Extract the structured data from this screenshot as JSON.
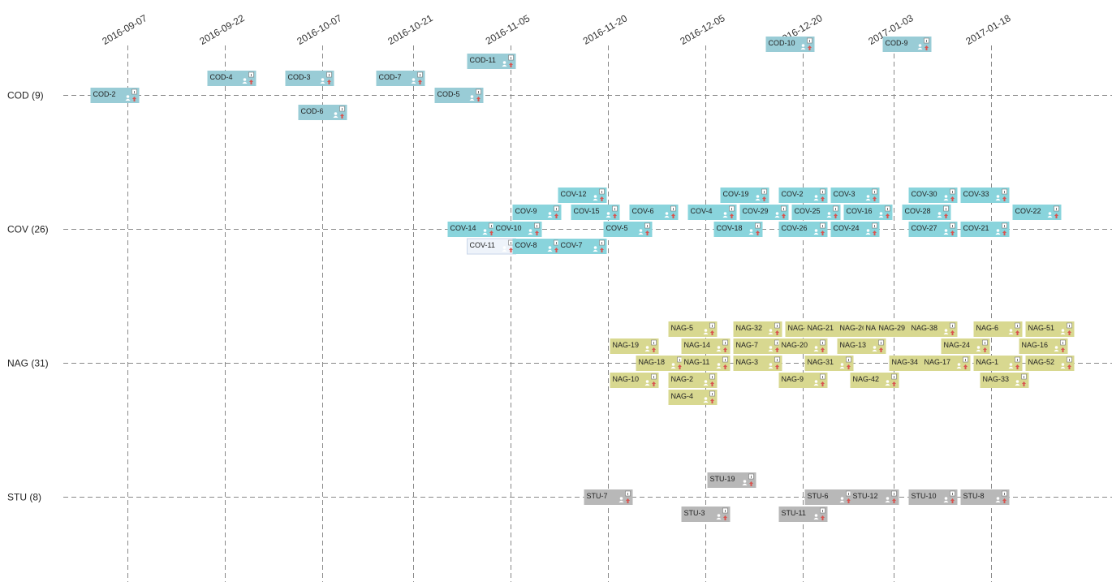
{
  "chart_data": {
    "type": "timeline",
    "dates": [
      "2016-09-07",
      "2016-09-22",
      "2016-10-07",
      "2016-10-21",
      "2016-11-05",
      "2016-11-20",
      "2016-12-05",
      "2016-12-20",
      "2017-01-03",
      "2017-01-18"
    ],
    "lanes": [
      {
        "key": "COD",
        "label": "COD (9)",
        "color": "#99ccd6"
      },
      {
        "key": "COV",
        "label": "COV (26)",
        "color": "#89d4dc"
      },
      {
        "key": "NAG",
        "label": "NAG (31)",
        "color": "#d8d890"
      },
      {
        "key": "STU",
        "label": "STU (8)",
        "color": "#b8b8b8"
      }
    ],
    "items": [
      {
        "lane": "COD",
        "label": "COD-2",
        "date": "2016-09-05",
        "offset": 0
      },
      {
        "lane": "COD",
        "label": "COD-4",
        "date": "2016-09-23",
        "offset": -1
      },
      {
        "lane": "COD",
        "label": "COD-3",
        "date": "2016-10-05",
        "offset": -1
      },
      {
        "lane": "COD",
        "label": "COD-6",
        "date": "2016-10-07",
        "offset": 1
      },
      {
        "lane": "COD",
        "label": "COD-7",
        "date": "2016-10-19",
        "offset": -1
      },
      {
        "lane": "COD",
        "label": "COD-5",
        "date": "2016-10-28",
        "offset": 0
      },
      {
        "lane": "COD",
        "label": "COD-11",
        "date": "2016-11-02",
        "offset": -2
      },
      {
        "lane": "COD",
        "label": "COD-10",
        "date": "2016-12-18",
        "offset": -3
      },
      {
        "lane": "COD",
        "label": "COD-9",
        "date": "2017-01-05",
        "offset": -3
      },
      {
        "lane": "COV",
        "label": "COV-14",
        "date": "2016-10-30",
        "offset": 0
      },
      {
        "lane": "COV",
        "label": "COV-11",
        "date": "2016-11-02",
        "offset": 1,
        "inactive": true
      },
      {
        "lane": "COV",
        "label": "COV-10",
        "date": "2016-11-06",
        "offset": 0
      },
      {
        "lane": "COV",
        "label": "COV-9",
        "date": "2016-11-09",
        "offset": -1
      },
      {
        "lane": "COV",
        "label": "COV-8",
        "date": "2016-11-09",
        "offset": 1
      },
      {
        "lane": "COV",
        "label": "COV-12",
        "date": "2016-11-16",
        "offset": -2
      },
      {
        "lane": "COV",
        "label": "COV-15",
        "date": "2016-11-18",
        "offset": -1
      },
      {
        "lane": "COV",
        "label": "COV-7",
        "date": "2016-11-16",
        "offset": 1
      },
      {
        "lane": "COV",
        "label": "COV-5",
        "date": "2016-11-23",
        "offset": 0
      },
      {
        "lane": "COV",
        "label": "COV-6",
        "date": "2016-11-27",
        "offset": -1
      },
      {
        "lane": "COV",
        "label": "COV-4",
        "date": "2016-12-06",
        "offset": -1
      },
      {
        "lane": "COV",
        "label": "COV-19",
        "date": "2016-12-11",
        "offset": -2
      },
      {
        "lane": "COV",
        "label": "COV-18",
        "date": "2016-12-10",
        "offset": 0
      },
      {
        "lane": "COV",
        "label": "COV-29",
        "date": "2016-12-14",
        "offset": -1
      },
      {
        "lane": "COV",
        "label": "COV-2",
        "date": "2016-12-20",
        "offset": -2
      },
      {
        "lane": "COV",
        "label": "COV-26",
        "date": "2016-12-20",
        "offset": 0
      },
      {
        "lane": "COV",
        "label": "COV-25",
        "date": "2016-12-22",
        "offset": -1
      },
      {
        "lane": "COV",
        "label": "COV-3",
        "date": "2016-12-28",
        "offset": -2
      },
      {
        "lane": "COV",
        "label": "COV-24",
        "date": "2016-12-28",
        "offset": 0
      },
      {
        "lane": "COV",
        "label": "COV-16",
        "date": "2016-12-30",
        "offset": -1
      },
      {
        "lane": "COV",
        "label": "COV-30",
        "date": "2017-01-09",
        "offset": -2
      },
      {
        "lane": "COV",
        "label": "COV-28",
        "date": "2017-01-08",
        "offset": -1
      },
      {
        "lane": "COV",
        "label": "COV-27",
        "date": "2017-01-09",
        "offset": 0
      },
      {
        "lane": "COV",
        "label": "COV-33",
        "date": "2017-01-17",
        "offset": -2
      },
      {
        "lane": "COV",
        "label": "COV-21",
        "date": "2017-01-17",
        "offset": 0
      },
      {
        "lane": "COV",
        "label": "COV-22",
        "date": "2017-01-25",
        "offset": -1
      },
      {
        "lane": "NAG",
        "label": "NAG-19",
        "date": "2016-11-24",
        "offset": -1
      },
      {
        "lane": "NAG",
        "label": "NAG-18",
        "date": "2016-11-28",
        "offset": 0
      },
      {
        "lane": "NAG",
        "label": "NAG-10",
        "date": "2016-11-24",
        "offset": 1
      },
      {
        "lane": "NAG",
        "label": "NAG-2",
        "date": "2016-12-03",
        "offset": 1
      },
      {
        "lane": "NAG",
        "label": "NAG-5",
        "date": "2016-12-03",
        "offset": -2
      },
      {
        "lane": "NAG",
        "label": "NAG-14",
        "date": "2016-12-05",
        "offset": -1
      },
      {
        "lane": "NAG",
        "label": "NAG-11",
        "date": "2016-12-05",
        "offset": 0
      },
      {
        "lane": "NAG",
        "label": "NAG-4",
        "date": "2016-12-03",
        "offset": 2
      },
      {
        "lane": "NAG",
        "label": "NAG-32",
        "date": "2016-12-13",
        "offset": -2
      },
      {
        "lane": "NAG",
        "label": "NAG-7",
        "date": "2016-12-13",
        "offset": -1
      },
      {
        "lane": "NAG",
        "label": "NAG-3",
        "date": "2016-12-13",
        "offset": 0
      },
      {
        "lane": "NAG",
        "label": "NAG-22",
        "date": "2016-12-21",
        "offset": -2
      },
      {
        "lane": "NAG",
        "label": "NAG-20",
        "date": "2016-12-20",
        "offset": -1
      },
      {
        "lane": "NAG",
        "label": "NAG-9",
        "date": "2016-12-20",
        "offset": 1
      },
      {
        "lane": "NAG",
        "label": "NAG-21",
        "date": "2016-12-24",
        "offset": -2
      },
      {
        "lane": "NAG",
        "label": "NAG-31",
        "date": "2016-12-24",
        "offset": 0
      },
      {
        "lane": "NAG",
        "label": "NAG-26",
        "date": "2016-12-29",
        "offset": -2
      },
      {
        "lane": "NAG",
        "label": "NAG-13",
        "date": "2016-12-29",
        "offset": -1
      },
      {
        "lane": "NAG",
        "label": "NAG-42",
        "date": "2016-12-31",
        "offset": 1
      },
      {
        "lane": "NAG",
        "label": "NAG-15",
        "date": "2017-01-02",
        "offset": -2
      },
      {
        "lane": "NAG",
        "label": "NAG-29",
        "date": "2017-01-04",
        "offset": -2
      },
      {
        "lane": "NAG",
        "label": "NAG-34",
        "date": "2017-01-06",
        "offset": 0
      },
      {
        "lane": "NAG",
        "label": "NAG-38",
        "date": "2017-01-09",
        "offset": -2
      },
      {
        "lane": "NAG",
        "label": "NAG-17",
        "date": "2017-01-11",
        "offset": 0
      },
      {
        "lane": "NAG",
        "label": "NAG-24",
        "date": "2017-01-14",
        "offset": -1
      },
      {
        "lane": "NAG",
        "label": "NAG-6",
        "date": "2017-01-19",
        "offset": -2
      },
      {
        "lane": "NAG",
        "label": "NAG-1",
        "date": "2017-01-19",
        "offset": 0
      },
      {
        "lane": "NAG",
        "label": "NAG-33",
        "date": "2017-01-20",
        "offset": 1
      },
      {
        "lane": "NAG",
        "label": "NAG-51",
        "date": "2017-01-27",
        "offset": -2
      },
      {
        "lane": "NAG",
        "label": "NAG-16",
        "date": "2017-01-26",
        "offset": -1
      },
      {
        "lane": "NAG",
        "label": "NAG-52",
        "date": "2017-01-27",
        "offset": 0
      },
      {
        "lane": "STU",
        "label": "STU-7",
        "date": "2016-11-20",
        "offset": 0
      },
      {
        "lane": "STU",
        "label": "STU-19",
        "date": "2016-12-09",
        "offset": -1
      },
      {
        "lane": "STU",
        "label": "STU-3",
        "date": "2016-12-05",
        "offset": 1
      },
      {
        "lane": "STU",
        "label": "STU-6",
        "date": "2016-12-24",
        "offset": 0
      },
      {
        "lane": "STU",
        "label": "STU-11",
        "date": "2016-12-20",
        "offset": 1
      },
      {
        "lane": "STU",
        "label": "STU-12",
        "date": "2016-12-31",
        "offset": 0
      },
      {
        "lane": "STU",
        "label": "STU-10",
        "date": "2017-01-09",
        "offset": 0
      },
      {
        "lane": "STU",
        "label": "STU-8",
        "date": "2017-01-17",
        "offset": 0
      }
    ]
  }
}
